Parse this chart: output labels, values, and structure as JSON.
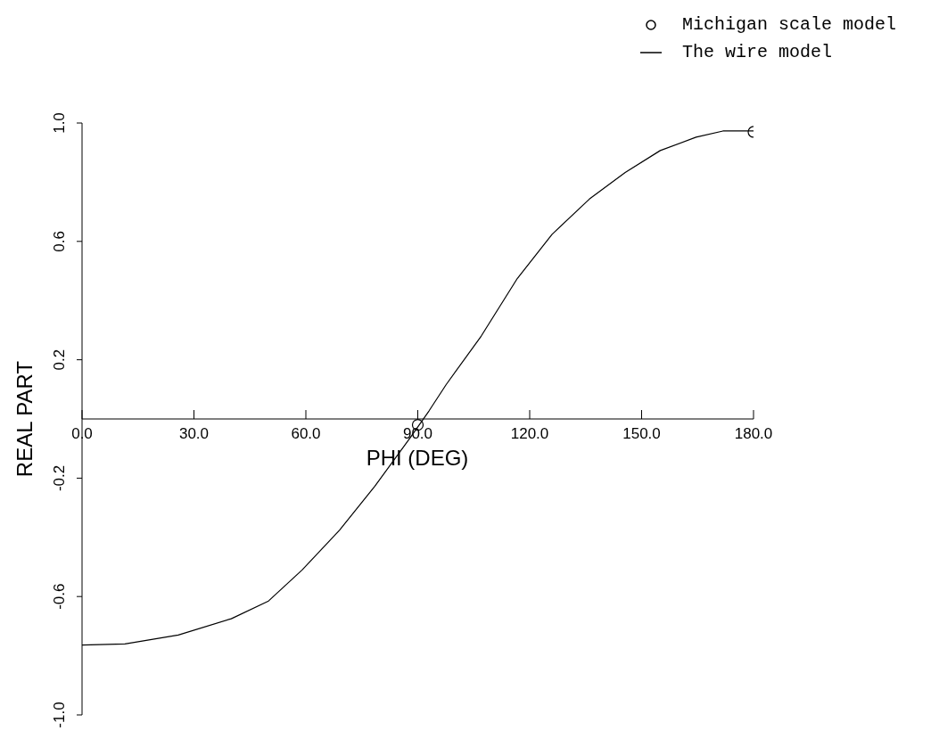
{
  "chart_data": {
    "type": "line",
    "xlabel": "PHI (DEG)",
    "ylabel": "REAL PART",
    "legend": "top right",
    "xlim": [
      0,
      180
    ],
    "xticks": [
      {
        "value": 0,
        "label": "0.0"
      },
      {
        "value": 30,
        "label": "30.0"
      },
      {
        "value": 60,
        "label": "60.0"
      },
      {
        "value": 90,
        "label": "90.0"
      },
      {
        "value": 120,
        "label": "120.0"
      },
      {
        "value": 150,
        "label": "150.0"
      },
      {
        "value": 180,
        "label": "180.0"
      }
    ],
    "ylim": [
      -1,
      1
    ],
    "yticks": [
      {
        "value": -1,
        "label": "-1.0"
      },
      {
        "value": -0.6,
        "label": "-0.6"
      },
      {
        "value": -0.2,
        "label": "-0.2"
      },
      {
        "value": 0.2,
        "label": "0.2"
      },
      {
        "value": 0.6,
        "label": "0.6"
      },
      {
        "value": 1,
        "label": "1.0"
      }
    ],
    "series": [
      {
        "name": "Michigan scale model",
        "type": "scatter",
        "marker": "circle",
        "color": "#000000",
        "x": [
          90,
          180
        ],
        "values": [
          -0.02,
          0.97
        ]
      },
      {
        "name": "The wire model",
        "marker": "none",
        "color": "#000000",
        "x": [
          0,
          11.5,
          25.8,
          40,
          50,
          59,
          69,
          78.5,
          88,
          93,
          97.6,
          107,
          116.7,
          126,
          136,
          145.6,
          155,
          164.6,
          171.8,
          180
        ],
        "values": [
          -0.764,
          -0.76,
          -0.73,
          -0.675,
          -0.615,
          -0.51,
          -0.376,
          -0.227,
          -0.063,
          0.027,
          0.116,
          0.28,
          0.475,
          0.624,
          0.743,
          0.833,
          0.907,
          0.952,
          0.973,
          0.973
        ]
      }
    ]
  }
}
